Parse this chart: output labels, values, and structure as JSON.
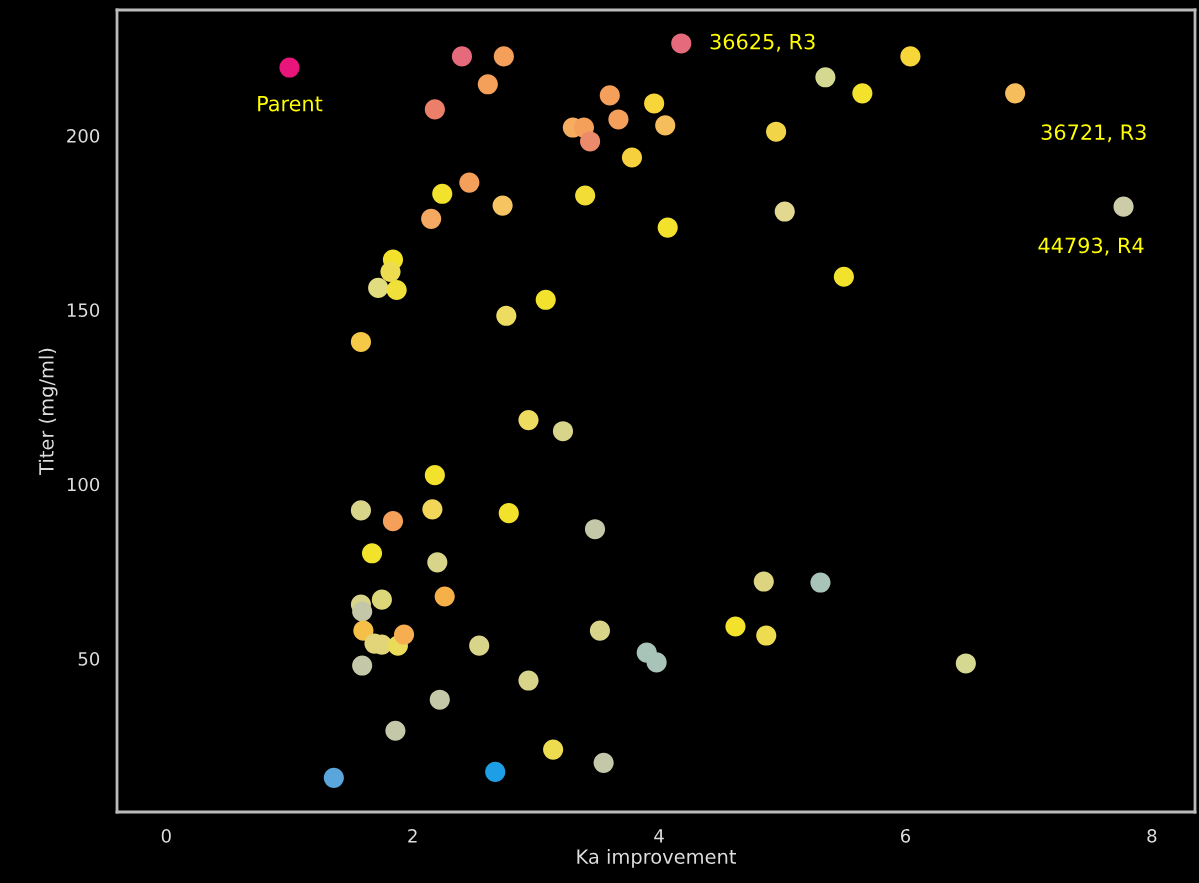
{
  "chart_data": {
    "type": "scatter",
    "xlabel": "Ka improvement",
    "ylabel": "Titer (mg/ml)",
    "xlim": [
      -0.4,
      8.35
    ],
    "ylim": [
      6,
      236
    ],
    "xticks": [
      0,
      2,
      4,
      6,
      8
    ],
    "yticks": [
      50,
      100,
      150,
      200
    ],
    "grid": false,
    "marker": "circle",
    "x": [
      1.0,
      2.4,
      2.74,
      2.61,
      2.18,
      4.18,
      3.6,
      3.3,
      3.39,
      3.44,
      3.67,
      3.96,
      4.05,
      3.78,
      2.46,
      2.24,
      2.73,
      2.15,
      3.4,
      4.07,
      1.84,
      1.82,
      1.72,
      1.87,
      1.58,
      2.76,
      3.08,
      2.94,
      3.22,
      2.18,
      1.58,
      1.84,
      2.16,
      2.78,
      3.48,
      1.67,
      2.2,
      2.26,
      1.58,
      1.59,
      1.75,
      1.6,
      1.69,
      1.75,
      1.88,
      1.93,
      1.59,
      2.54,
      2.22,
      1.86,
      1.36,
      2.67,
      3.14,
      3.55,
      2.94,
      3.52,
      3.9,
      3.98,
      4.85,
      5.31,
      4.62,
      4.87,
      6.49,
      5.35,
      6.04,
      5.65,
      6.89,
      4.95,
      5.02,
      5.5,
      7.77
    ],
    "values": [
      219.5,
      222.7,
      222.7,
      214.7,
      207.5,
      226.4,
      211.5,
      202.3,
      202.3,
      198.3,
      204.6,
      209.2,
      202.9,
      193.7,
      186.5,
      183.3,
      179.9,
      176.1,
      182.8,
      173.6,
      164.4,
      160.9,
      156.3,
      155.7,
      140.8,
      148.3,
      152.9,
      118.4,
      115.2,
      102.6,
      92.5,
      89.4,
      92.8,
      91.7,
      87.1,
      80.2,
      77.6,
      67.8,
      65.5,
      63.5,
      66.9,
      58.0,
      54.3,
      54.0,
      53.7,
      56.9,
      48.0,
      53.7,
      38.2,
      29.3,
      15.8,
      17.5,
      23.9,
      20.1,
      43.7,
      58.0,
      51.7,
      48.9,
      72.1,
      71.8,
      59.2,
      56.6,
      48.6,
      216.7,
      222.7,
      212.1,
      212.1,
      201.1,
      178.2,
      159.5,
      179.6
    ],
    "colors": [
      "#e8157a",
      "#e46a7c",
      "#f5a05a",
      "#f5a05a",
      "#ec7f6a",
      "#e46a7c",
      "#f5a05a",
      "#f6ad60",
      "#f5a05a",
      "#ec8a6c",
      "#f5a05a",
      "#f7d63a",
      "#f6bd5c",
      "#f7d03e",
      "#f5a05a",
      "#f2e22c",
      "#f6c460",
      "#f5a862",
      "#f2dc36",
      "#f2e22c",
      "#f2e22c",
      "#eedc50",
      "#e2dc80",
      "#f2e03a",
      "#f6c848",
      "#eedc60",
      "#f2e22c",
      "#eedc60",
      "#d8d48a",
      "#f2e22c",
      "#d8d48a",
      "#f5a05a",
      "#f2d65a",
      "#f2e22c",
      "#c4c8a8",
      "#f2e22c",
      "#d8d48a",
      "#f6b048",
      "#d8d48a",
      "#c4c8a8",
      "#dcd87a",
      "#f6c048",
      "#e2d478",
      "#e2d478",
      "#eadc5a",
      "#f6ae50",
      "#c4c8a8",
      "#d8d48a",
      "#c4c8a8",
      "#c4c8a8",
      "#5aa6dc",
      "#1e9ee6",
      "#eedc50",
      "#c4c8a8",
      "#d8d48a",
      "#d8d48a",
      "#a8c4b8",
      "#a8c4b8",
      "#dcd480",
      "#a8c4b8",
      "#f2e22c",
      "#eedc50",
      "#d4d890",
      "#d4d890",
      "#f7d63a",
      "#f2e22c",
      "#f6bd5c",
      "#f2d448",
      "#e2d890",
      "#f2e22c",
      "#cccca8"
    ],
    "annotations": [
      {
        "text": "Parent",
        "x": 1.0,
        "y": 219.5
      },
      {
        "text": "36625, R3",
        "x": 4.18,
        "y": 226.4
      },
      {
        "text": "36721, R3",
        "x": 6.89,
        "y": 212.1
      },
      {
        "text": "44793, R4",
        "x": 7.77,
        "y": 179.6
      }
    ]
  }
}
